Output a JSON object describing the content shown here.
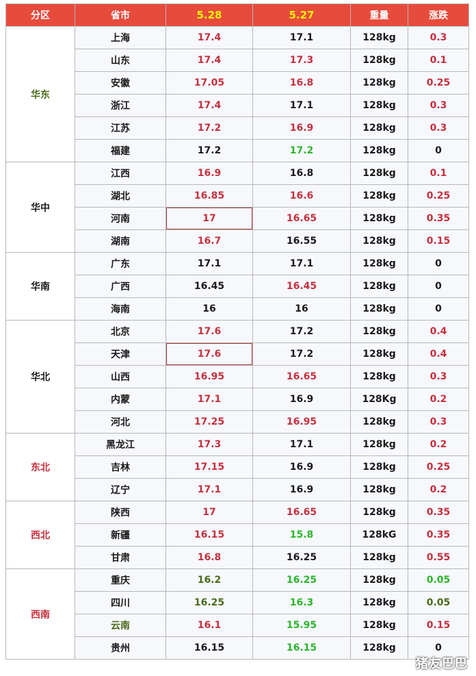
{
  "colors": {
    "red": "#c6303e",
    "green": "#2bb52b",
    "dark_green": "#4a6a1a",
    "black": "#1a1a1a",
    "header": "#e64b3c"
  },
  "headers": [
    "分区",
    "省市",
    "5.28",
    "5.27",
    "重量",
    "涨跌"
  ],
  "watermark": "猪友巴巴",
  "regions": [
    {
      "name": "华东",
      "color": "dark_green",
      "rows": [
        {
          "province": "上海",
          "p528": "17.4",
          "c528": "red",
          "p527": "17.1",
          "c527": "black",
          "weight": "128kg",
          "change": "0.3",
          "cchg": "red"
        },
        {
          "province": "山东",
          "p528": "17.4",
          "c528": "red",
          "p527": "17.3",
          "c527": "red",
          "weight": "128kg",
          "change": "0.1",
          "cchg": "red"
        },
        {
          "province": "安徽",
          "p528": "17.05",
          "c528": "red",
          "p527": "16.8",
          "c527": "red",
          "weight": "128kg",
          "change": "0.25",
          "cchg": "red"
        },
        {
          "province": "浙江",
          "p528": "17.4",
          "c528": "red",
          "p527": "17.1",
          "c527": "black",
          "weight": "128kg",
          "change": "0.3",
          "cchg": "red"
        },
        {
          "province": "江苏",
          "p528": "17.2",
          "c528": "red",
          "p527": "16.9",
          "c527": "red",
          "weight": "128kg",
          "change": "0.3",
          "cchg": "red"
        },
        {
          "province": "福建",
          "p528": "17.2",
          "c528": "black",
          "p527": "17.2",
          "c527": "green",
          "weight": "128kg",
          "change": "0",
          "cchg": "black"
        }
      ]
    },
    {
      "name": "华中",
      "color": "black",
      "rows": [
        {
          "province": "江西",
          "p528": "16.9",
          "c528": "red",
          "p527": "16.8",
          "c527": "black",
          "weight": "128kg",
          "change": "0.1",
          "cchg": "red"
        },
        {
          "province": "湖北",
          "p528": "16.85",
          "c528": "red",
          "p527": "16.6",
          "c527": "red",
          "weight": "128kg",
          "change": "0.25",
          "cchg": "red"
        },
        {
          "province": "河南",
          "p528": "17",
          "c528": "red",
          "p527": "16.65",
          "c527": "red",
          "weight": "128kg",
          "change": "0.35",
          "cchg": "red",
          "hl": true
        },
        {
          "province": "湖南",
          "p528": "16.7",
          "c528": "red",
          "p527": "16.55",
          "c527": "black",
          "weight": "128kg",
          "change": "0.15",
          "cchg": "red"
        }
      ]
    },
    {
      "name": "华南",
      "color": "black",
      "rows": [
        {
          "province": "广东",
          "p528": "17.1",
          "c528": "black",
          "p527": "17.1",
          "c527": "black",
          "weight": "128kg",
          "change": "0",
          "cchg": "black"
        },
        {
          "province": "广西",
          "p528": "16.45",
          "c528": "black",
          "p527": "16.45",
          "c527": "red",
          "weight": "128kg",
          "change": "0",
          "cchg": "black"
        },
        {
          "province": "海南",
          "p528": "16",
          "c528": "black",
          "p527": "16",
          "c527": "black",
          "weight": "128kg",
          "change": "0",
          "cchg": "black"
        }
      ]
    },
    {
      "name": "华北",
      "color": "black",
      "rows": [
        {
          "province": "北京",
          "p528": "17.6",
          "c528": "red",
          "p527": "17.2",
          "c527": "black",
          "weight": "128kg",
          "change": "0.4",
          "cchg": "red"
        },
        {
          "province": "天津",
          "p528": "17.6",
          "c528": "red",
          "p527": "17.2",
          "c527": "black",
          "weight": "128kg",
          "change": "0.4",
          "cchg": "red",
          "hl": true
        },
        {
          "province": "山西",
          "p528": "16.95",
          "c528": "red",
          "p527": "16.65",
          "c527": "red",
          "weight": "128kg",
          "change": "0.3",
          "cchg": "red"
        },
        {
          "province": "内蒙",
          "p528": "17.1",
          "c528": "red",
          "p527": "16.9",
          "c527": "black",
          "weight": "128Kg",
          "change": "0.2",
          "cchg": "red"
        },
        {
          "province": "河北",
          "p528": "17.25",
          "c528": "red",
          "p527": "16.95",
          "c527": "red",
          "weight": "128kg",
          "change": "0.3",
          "cchg": "red"
        }
      ]
    },
    {
      "name": "东北",
      "color": "red",
      "rows": [
        {
          "province": "黑龙江",
          "p528": "17.3",
          "c528": "red",
          "p527": "17.1",
          "c527": "black",
          "weight": "128kg",
          "change": "0.2",
          "cchg": "red"
        },
        {
          "province": "吉林",
          "p528": "17.15",
          "c528": "red",
          "p527": "16.9",
          "c527": "black",
          "weight": "128kg",
          "change": "0.25",
          "cchg": "red"
        },
        {
          "province": "辽宁",
          "p528": "17.1",
          "c528": "red",
          "p527": "16.9",
          "c527": "black",
          "weight": "128kg",
          "change": "0.2",
          "cchg": "red"
        }
      ]
    },
    {
      "name": "西北",
      "color": "red",
      "rows": [
        {
          "province": "陕西",
          "p528": "17",
          "c528": "red",
          "p527": "16.65",
          "c527": "red",
          "weight": "128kg",
          "change": "0.35",
          "cchg": "red"
        },
        {
          "province": "新疆",
          "p528": "16.15",
          "c528": "red",
          "p527": "15.8",
          "c527": "green",
          "weight": "128kG",
          "change": "0.35",
          "cchg": "red"
        },
        {
          "province": "甘肃",
          "p528": "16.8",
          "c528": "red",
          "p527": "16.25",
          "c527": "black",
          "weight": "128kg",
          "change": "0.55",
          "cchg": "red"
        }
      ]
    },
    {
      "name": "西南",
      "color": "red",
      "rows": [
        {
          "province": "重庆",
          "p528": "16.2",
          "c528": "dark_green",
          "p527": "16.25",
          "c527": "green",
          "weight": "128kg",
          "change": "0.05",
          "cchg": "green"
        },
        {
          "province": "四川",
          "p528": "16.25",
          "c528": "dark_green",
          "p527": "16.3",
          "c527": "green",
          "weight": "128kg",
          "change": "0.05",
          "cchg": "dark_green"
        },
        {
          "province": "云南",
          "p528": "16.1",
          "c528": "red",
          "p527": "15.95",
          "c527": "green",
          "weight": "128kg",
          "change": "0.15",
          "cchg": "red",
          "pcolor": "dark_green"
        },
        {
          "province": "贵州",
          "p528": "16.15",
          "c528": "black",
          "p527": "16.15",
          "c527": "green",
          "weight": "128kg",
          "change": "0",
          "cchg": "black"
        }
      ]
    }
  ]
}
